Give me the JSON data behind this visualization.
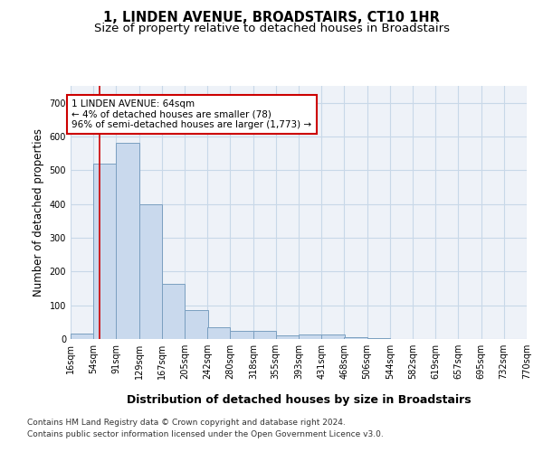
{
  "title": "1, LINDEN AVENUE, BROADSTAIRS, CT10 1HR",
  "subtitle": "Size of property relative to detached houses in Broadstairs",
  "xlabel": "Distribution of detached houses by size in Broadstairs",
  "ylabel": "Number of detached properties",
  "bar_values": [
    15,
    520,
    580,
    400,
    163,
    85,
    35,
    23,
    23,
    10,
    13,
    13,
    5,
    3,
    0,
    0,
    0,
    0,
    0
  ],
  "bin_edges": [
    16,
    54,
    91,
    129,
    167,
    205,
    242,
    280,
    318,
    355,
    393,
    431,
    468,
    506,
    544,
    582,
    619,
    657,
    695,
    732
  ],
  "tick_labels": [
    "16sqm",
    "54sqm",
    "91sqm",
    "129sqm",
    "167sqm",
    "205sqm",
    "242sqm",
    "280sqm",
    "318sqm",
    "355sqm",
    "393sqm",
    "431sqm",
    "468sqm",
    "506sqm",
    "544sqm",
    "582sqm",
    "619sqm",
    "657sqm",
    "695sqm",
    "732sqm",
    "770sqm"
  ],
  "bar_color": "#c9d9ed",
  "bar_edge_color": "#7a9fc0",
  "grid_color": "#c8d8e8",
  "background_color": "#ffffff",
  "plot_bg_color": "#eef2f8",
  "vline_x": 64,
  "vline_color": "#cc0000",
  "annotation_text": "1 LINDEN AVENUE: 64sqm\n← 4% of detached houses are smaller (78)\n96% of semi-detached houses are larger (1,773) →",
  "annotation_box_color": "#ffffff",
  "annotation_box_edge_color": "#cc0000",
  "ylim": [
    0,
    750
  ],
  "yticks": [
    0,
    100,
    200,
    300,
    400,
    500,
    600,
    700
  ],
  "footer_line1": "Contains HM Land Registry data © Crown copyright and database right 2024.",
  "footer_line2": "Contains public sector information licensed under the Open Government Licence v3.0.",
  "title_fontsize": 10.5,
  "subtitle_fontsize": 9.5,
  "tick_fontsize": 7,
  "ylabel_fontsize": 8.5,
  "xlabel_fontsize": 9,
  "footer_fontsize": 6.5
}
